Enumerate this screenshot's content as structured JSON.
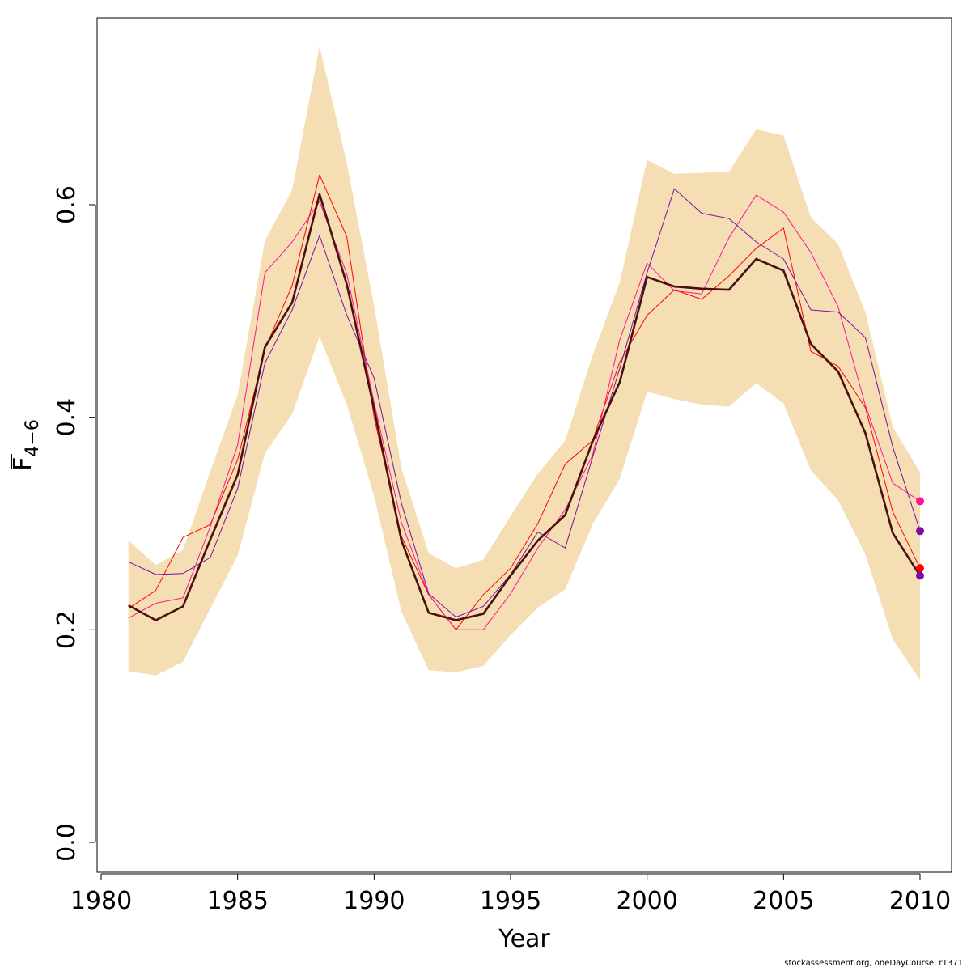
{
  "chart_data": {
    "type": "line",
    "xlabel": "Year",
    "ylabel": "F",
    "ylabel_subscript": "4−6",
    "xlim": [
      1980,
      2010
    ],
    "ylim": [
      0,
      0.8
    ],
    "xticks": [
      1980,
      1985,
      1990,
      1995,
      2000,
      2005,
      2010
    ],
    "yticks": [
      0.0,
      0.2,
      0.4,
      0.6
    ],
    "ytick_labels": [
      "0.0",
      "0.2",
      "0.4",
      "0.6"
    ],
    "grid": false,
    "band_color": "#F5DEB3",
    "x": [
      1981,
      1982,
      1983,
      1984,
      1985,
      1986,
      1987,
      1988,
      1989,
      1990,
      1991,
      1992,
      1993,
      1994,
      1995,
      1996,
      1997,
      1998,
      1999,
      2000,
      2001,
      2002,
      2003,
      2004,
      2005,
      2006,
      2007,
      2008,
      2009,
      2010
    ],
    "band_upper": [
      0.284,
      0.261,
      0.275,
      0.349,
      0.421,
      0.566,
      0.614,
      0.749,
      0.639,
      0.505,
      0.352,
      0.272,
      0.258,
      0.266,
      0.307,
      0.347,
      0.378,
      0.458,
      0.527,
      0.642,
      0.629,
      0.63,
      0.631,
      0.671,
      0.665,
      0.588,
      0.563,
      0.499,
      0.391,
      0.348
    ],
    "band_lower": [
      0.161,
      0.157,
      0.17,
      0.22,
      0.27,
      0.366,
      0.403,
      0.476,
      0.412,
      0.326,
      0.217,
      0.162,
      0.16,
      0.166,
      0.195,
      0.221,
      0.238,
      0.299,
      0.342,
      0.424,
      0.417,
      0.412,
      0.41,
      0.432,
      0.413,
      0.35,
      0.322,
      0.271,
      0.191,
      0.153
    ],
    "series": [
      {
        "color": "#4A1010",
        "width": 2.6,
        "values": [
          0.223,
          0.209,
          0.222,
          0.285,
          0.346,
          0.466,
          0.508,
          0.61,
          0.525,
          0.408,
          0.284,
          0.216,
          0.209,
          0.215,
          0.251,
          0.284,
          0.308,
          0.377,
          0.433,
          0.532,
          0.523,
          0.521,
          0.52,
          0.549,
          0.538,
          0.469,
          0.443,
          0.385,
          0.291,
          0.251
        ]
      },
      {
        "color": "#FF0000",
        "width": 1.0,
        "values": [
          0.22,
          0.237,
          0.287,
          0.299,
          0.36,
          0.464,
          0.524,
          0.628,
          0.57,
          0.4,
          0.288,
          0.233,
          0.2,
          0.233,
          0.258,
          0.3,
          0.356,
          0.378,
          0.452,
          0.496,
          0.52,
          0.511,
          0.533,
          0.559,
          0.578,
          0.462,
          0.448,
          0.409,
          0.311,
          0.258
        ]
      },
      {
        "color": "#FF1493",
        "width": 1.0,
        "values": [
          0.211,
          0.225,
          0.23,
          0.297,
          0.374,
          0.536,
          0.565,
          0.603,
          0.535,
          0.414,
          0.301,
          0.233,
          0.2,
          0.2,
          0.234,
          0.277,
          0.313,
          0.364,
          0.473,
          0.545,
          0.519,
          0.516,
          0.569,
          0.609,
          0.593,
          0.555,
          0.504,
          0.411,
          0.338,
          0.321
        ]
      },
      {
        "color": "#7B0FA0",
        "width": 1.0,
        "values": [
          0.264,
          0.252,
          0.253,
          0.268,
          0.333,
          0.451,
          0.501,
          0.571,
          0.496,
          0.437,
          0.319,
          0.234,
          0.212,
          0.222,
          0.252,
          0.292,
          0.277,
          0.362,
          0.446,
          0.536,
          0.615,
          0.592,
          0.587,
          0.565,
          0.549,
          0.501,
          0.499,
          0.475,
          0.372,
          0.293
        ]
      }
    ],
    "endpoints": [
      {
        "x": 2010,
        "y": 0.321,
        "color": "#FF1493"
      },
      {
        "x": 2010,
        "y": 0.293,
        "color": "#7B0FA0"
      },
      {
        "x": 2010,
        "y": 0.258,
        "color": "#FF0000"
      },
      {
        "x": 2010,
        "y": 0.251,
        "color": "#7B0FA0"
      }
    ]
  },
  "footer_text": "stockassessment.org, oneDayCourse, r1371"
}
